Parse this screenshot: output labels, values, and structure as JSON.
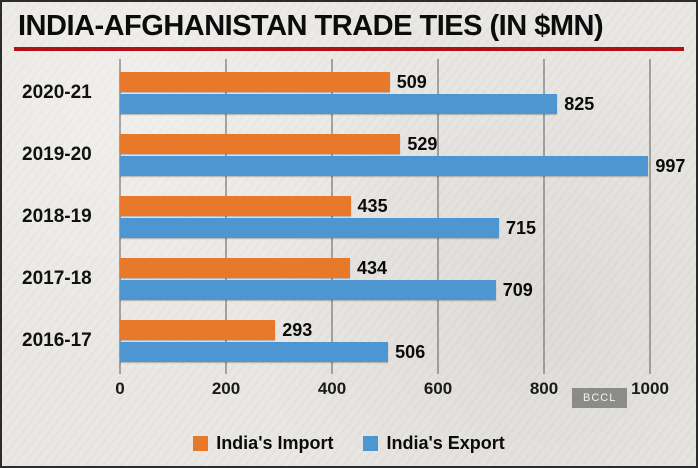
{
  "title": "INDIA-AFGHANISTAN TRADE TIES (IN $MN)",
  "watermark": "BCCL",
  "chart_data": {
    "type": "bar",
    "orientation": "horizontal",
    "title": "INDIA-AFGHANISTAN TRADE TIES (IN $MN)",
    "categories": [
      "2020-21",
      "2019-20",
      "2018-19",
      "2017-18",
      "2016-17"
    ],
    "series": [
      {
        "name": "India's Import",
        "color": "#e8792a",
        "values": [
          509,
          529,
          435,
          434,
          293
        ]
      },
      {
        "name": "India's Export",
        "color": "#4d96d2",
        "values": [
          825,
          997,
          715,
          709,
          506
        ]
      }
    ],
    "x_ticks": [
      "0",
      "200",
      "400",
      "600",
      "800",
      "1000"
    ],
    "xlim": [
      0,
      1000
    ],
    "grid": true,
    "legend_position": "bottom"
  }
}
